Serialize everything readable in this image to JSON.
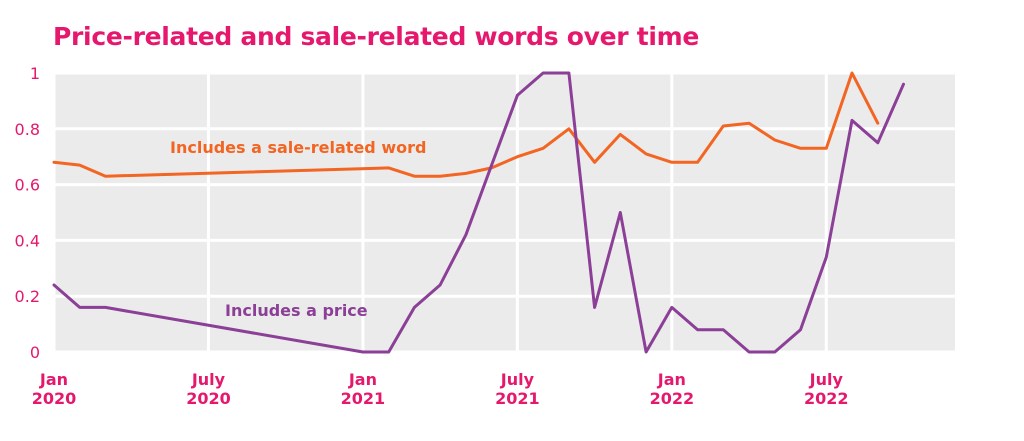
{
  "chart_data": {
    "type": "line",
    "title": "Price-related and sale-related words over time",
    "xlabel": "",
    "ylabel": "",
    "ylim": [
      0,
      1
    ],
    "xlim": [
      "2020-01",
      "2022-12"
    ],
    "y_ticks": [
      "0",
      "0.2",
      "0.4",
      "0.6",
      "0.8",
      "1"
    ],
    "y_tick_values": [
      0,
      0.2,
      0.4,
      0.6,
      0.8,
      1
    ],
    "x_ticks": [
      {
        "line1": "Jan",
        "line2": "2020",
        "date": "2020-01"
      },
      {
        "line1": "July",
        "line2": "2020",
        "date": "2020-07"
      },
      {
        "line1": "Jan",
        "line2": "2021",
        "date": "2021-01"
      },
      {
        "line1": "July",
        "line2": "2021",
        "date": "2021-07"
      },
      {
        "line1": "Jan",
        "line2": "2022",
        "date": "2022-01"
      },
      {
        "line1": "July",
        "line2": "2022",
        "date": "2022-07"
      }
    ],
    "grid": true,
    "background_color": "#ebebeb",
    "title_color": "#e6186d",
    "tick_color": "#e6186d",
    "series": [
      {
        "name": "Includes a sale-related word",
        "color": "#f26522",
        "x": [
          "2020-01",
          "2020-02",
          "2020-03",
          "2021-02",
          "2021-03",
          "2021-04",
          "2021-05",
          "2021-06",
          "2021-07",
          "2021-08",
          "2021-09",
          "2021-10",
          "2021-11",
          "2021-12",
          "2022-01",
          "2022-02",
          "2022-03",
          "2022-04",
          "2022-05",
          "2022-06",
          "2022-07",
          "2022-08",
          "2022-09"
        ],
        "y": [
          0.68,
          0.67,
          0.63,
          0.66,
          0.63,
          0.63,
          0.64,
          0.66,
          0.7,
          0.73,
          0.8,
          0.68,
          0.78,
          0.71,
          0.68,
          0.68,
          0.81,
          0.82,
          0.76,
          0.73,
          0.73,
          1.0,
          0.82
        ]
      },
      {
        "name": "Includes a price",
        "color": "#8b3f96",
        "x": [
          "2020-01",
          "2020-02",
          "2020-03",
          "2021-01",
          "2021-02",
          "2021-03",
          "2021-04",
          "2021-05",
          "2021-06",
          "2021-07",
          "2021-08",
          "2021-09",
          "2021-10",
          "2021-11",
          "2021-12",
          "2022-01",
          "2022-02",
          "2022-03",
          "2022-04",
          "2022-05",
          "2022-06",
          "2022-07",
          "2022-08",
          "2022-09",
          "2022-10"
        ],
        "y": [
          0.24,
          0.16,
          0.16,
          0.0,
          0.0,
          0.16,
          0.24,
          0.42,
          0.67,
          0.92,
          1.0,
          1.0,
          0.16,
          0.5,
          0.0,
          0.16,
          0.08,
          0.08,
          0.0,
          0.0,
          0.08,
          0.34,
          0.83,
          0.75,
          0.96
        ]
      }
    ]
  }
}
